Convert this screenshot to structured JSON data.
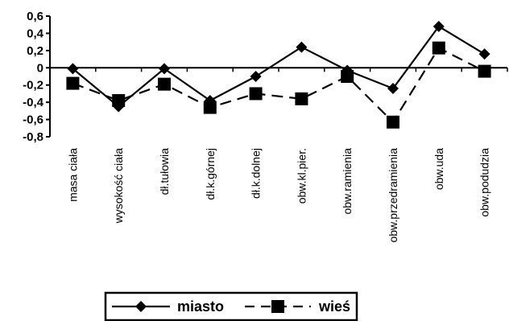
{
  "chart_data": {
    "type": "line",
    "title": "",
    "xlabel": "",
    "ylabel": "",
    "categories": [
      "masa ciała",
      "wysokość ciała",
      "dł.tułowia",
      "dł.k.górnej",
      "dł.k.dolnej",
      "obw.kl.pier.",
      "obw.ramienia",
      "obw.przedramienia",
      "obw.uda",
      "obw.podudzia"
    ],
    "series": [
      {
        "name": "miasto",
        "values": [
          -0.01,
          -0.45,
          -0.01,
          -0.38,
          -0.1,
          0.24,
          -0.03,
          -0.24,
          0.48,
          0.16
        ],
        "marker": "diamond",
        "line_style": "solid",
        "color": "#000000"
      },
      {
        "name": "wieś",
        "values": [
          -0.18,
          -0.38,
          -0.19,
          -0.46,
          -0.3,
          -0.36,
          -0.1,
          -0.63,
          0.23,
          -0.04
        ],
        "marker": "square",
        "line_style": "dashed",
        "color": "#000000"
      }
    ],
    "ylim": [
      -0.8,
      0.6
    ],
    "yticks": [
      0.6,
      0.4,
      0.2,
      0,
      -0.2,
      -0.4,
      -0.6,
      -0.8
    ],
    "ytick_labels": [
      "0,6",
      "0,4",
      "0,2",
      "0",
      "-0,2",
      "-0,4",
      "-0,6",
      "-0,8"
    ],
    "grid": false,
    "legend": "bottom"
  }
}
